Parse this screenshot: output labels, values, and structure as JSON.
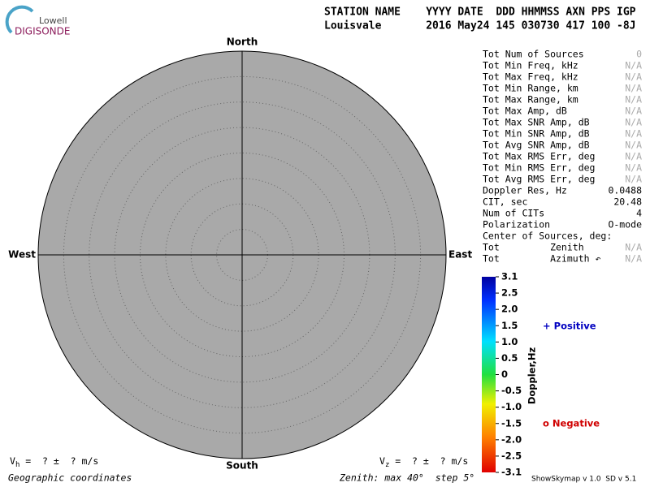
{
  "header": {
    "logo_top": "Lowell",
    "logo_bottom": "DIGISONDE",
    "line1": "STATION NAME    YYYY DATE  DDD HHMMSS AXN PPS IGP",
    "line2": "Louisvale       2016 May24 145 030730 417 100 -8J"
  },
  "compass": {
    "north": "North",
    "south": "South",
    "east": "East",
    "west": "West"
  },
  "stats": [
    [
      "Tot Num of Sources",
      "0"
    ],
    [
      "Tot Min Freq, kHz",
      "N/A"
    ],
    [
      "Tot Max Freq, kHz",
      "N/A"
    ],
    [
      "Tot Min Range, km",
      "N/A"
    ],
    [
      "Tot Max Range, km",
      "N/A"
    ],
    [
      "Tot Max Amp, dB",
      "N/A"
    ],
    [
      "Tot Max SNR Amp, dB",
      "N/A"
    ],
    [
      "Tot Min SNR Amp, dB",
      "N/A"
    ],
    [
      "Tot Avg SNR Amp, dB",
      "N/A"
    ],
    [
      "Tot Max RMS Err, deg",
      "N/A"
    ],
    [
      "Tot Min RMS Err, deg",
      "N/A"
    ],
    [
      "Tot Avg RMS Err, deg",
      "N/A"
    ],
    [
      "Doppler Res, Hz",
      "0.0488"
    ],
    [
      "CIT, sec",
      "20.48"
    ],
    [
      "Num of CITs",
      "4"
    ],
    [
      "Polarization",
      "O-mode"
    ],
    [
      "Center of Sources, deg:"
    ],
    [
      "Tot         Zenith",
      "N/A"
    ],
    [
      "Tot         Azimuth ↶",
      "N/A"
    ]
  ],
  "colorbar": {
    "title": "Doppler,Hz",
    "ticks": [
      "3.1",
      "2.5",
      "2.0",
      "1.5",
      "1.0",
      "0.5",
      "0",
      "-0.5",
      "-1.0",
      "-1.5",
      "-2.0",
      "-2.5",
      "-3.1"
    ]
  },
  "legend": {
    "positive": "+ Positive",
    "negative": "o Negative"
  },
  "footer": {
    "vh": "V",
    "vh_sub": "h",
    "vh_text": " =  ? ±  ? m/s",
    "vz": "V",
    "vz_sub": "z",
    "vz_text": " =  ? ±  ? m/s",
    "coords": "Geographic coordinates",
    "zenith": "Zenith: max 40°  step 5°",
    "version": "ShowSkymap v 1.0  SD v 5.1"
  }
}
